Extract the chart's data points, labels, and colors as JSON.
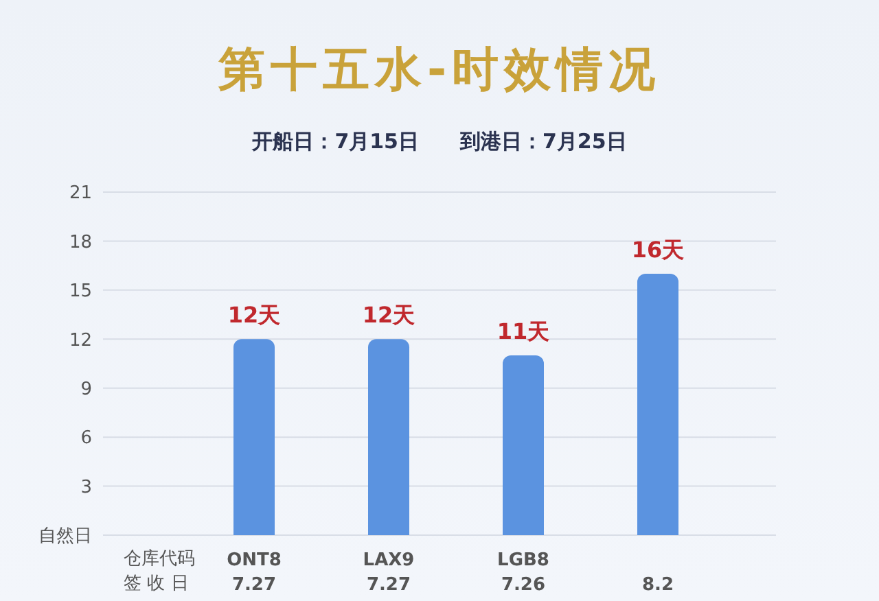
{
  "chart_data": {
    "type": "bar",
    "title": "第十五水-时效情况",
    "subtitle": "开船日：7月15日　　到港日：7月25日",
    "categories": [
      "ONT8\n7.27",
      "LAX9\n7.27",
      "LGB8\n7.26",
      "8.2"
    ],
    "values": [
      12,
      12,
      11,
      16
    ],
    "color": "#5b93e0",
    "value_labels": [
      "12天",
      "12天",
      "11天",
      "16天"
    ],
    "ylim": [
      0,
      21
    ],
    "yticks": [
      {
        "value": 0,
        "label": "自然日"
      },
      3,
      6,
      9,
      12,
      15,
      18,
      21
    ],
    "grid": "y",
    "annotations": [
      "仓库代码",
      "签 收 日"
    ]
  }
}
